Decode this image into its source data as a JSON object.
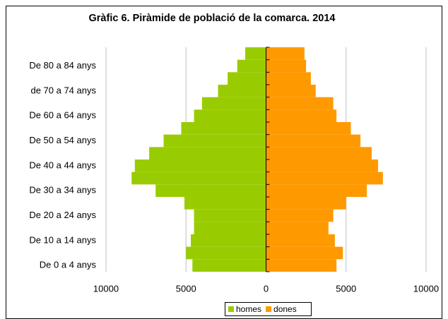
{
  "chart_data": {
    "type": "pyramid",
    "title": "Gràfic 6. Piràmide de població de la comarca. 2014",
    "categories": [
      "De 0 a 4 anys",
      null,
      "De 10 a 14 anys",
      null,
      "De 20 a 24 anys",
      null,
      "De 30 a 34 anys",
      null,
      "De 40 a 44 anys",
      null,
      "De 50 a 54 anys",
      null,
      "De 60 a 64 anys",
      null,
      "de 70 a 74 anys",
      null,
      "De 80 a 84 anys",
      null
    ],
    "series": [
      {
        "name": "homes",
        "color": "#99cc00",
        "values": [
          -4600,
          -5000,
          -4700,
          -4500,
          -4500,
          -5100,
          -6900,
          -8400,
          -8200,
          -7300,
          -6400,
          -5300,
          -4500,
          -4000,
          -3000,
          -2400,
          -1800,
          -1300
        ]
      },
      {
        "name": "dones",
        "color": "#ff9900",
        "values": [
          4400,
          4800,
          4300,
          3900,
          4200,
          5000,
          6300,
          7300,
          7000,
          6600,
          5900,
          5300,
          4400,
          4200,
          3100,
          2800,
          2500,
          2400
        ]
      }
    ],
    "xlim": [
      -10000,
      10000
    ],
    "xticks": [
      {
        "value": -10000,
        "label": "10000"
      },
      {
        "value": -5000,
        "label": "5000"
      },
      0,
      5000,
      10000
    ],
    "grid": true,
    "legend": "bottom"
  }
}
